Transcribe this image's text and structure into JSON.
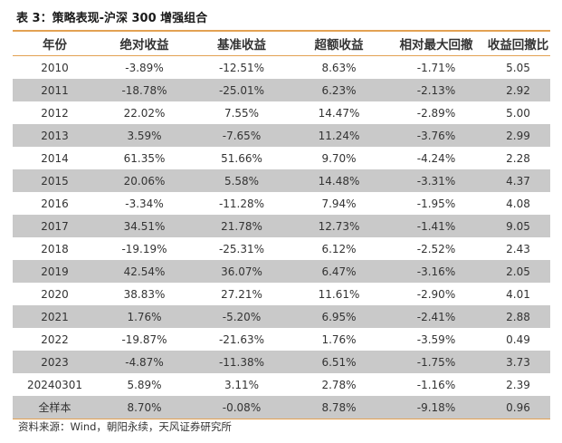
{
  "title": "表 3：策略表现-沪深 300 增强组合",
  "columns": [
    "年份",
    "绝对收益",
    "基准收益",
    "超额收益",
    "相对最大回撤",
    "收益回撤比"
  ],
  "rows": [
    [
      "2010",
      "-3.89%",
      "-12.51%",
      "8.63%",
      "-1.71%",
      "5.05"
    ],
    [
      "2011",
      "-18.78%",
      "-25.01%",
      "6.23%",
      "-2.13%",
      "2.92"
    ],
    [
      "2012",
      "22.02%",
      "7.55%",
      "14.47%",
      "-2.89%",
      "5.00"
    ],
    [
      "2013",
      "3.59%",
      "-7.65%",
      "11.24%",
      "-3.76%",
      "2.99"
    ],
    [
      "2014",
      "61.35%",
      "51.66%",
      "9.70%",
      "-4.24%",
      "2.28"
    ],
    [
      "2015",
      "20.06%",
      "5.58%",
      "14.48%",
      "-3.31%",
      "4.37"
    ],
    [
      "2016",
      "-3.34%",
      "-11.28%",
      "7.94%",
      "-1.95%",
      "4.08"
    ],
    [
      "2017",
      "34.51%",
      "21.78%",
      "12.73%",
      "-1.41%",
      "9.05"
    ],
    [
      "2018",
      "-19.19%",
      "-25.31%",
      "6.12%",
      "-2.52%",
      "2.43"
    ],
    [
      "2019",
      "42.54%",
      "36.07%",
      "6.47%",
      "-3.16%",
      "2.05"
    ],
    [
      "2020",
      "38.83%",
      "27.21%",
      "11.61%",
      "-2.90%",
      "4.01"
    ],
    [
      "2021",
      "1.76%",
      "-5.20%",
      "6.95%",
      "-2.41%",
      "2.88"
    ],
    [
      "2022",
      "-19.87%",
      "-21.63%",
      "1.76%",
      "-3.59%",
      "0.49"
    ],
    [
      "2023",
      "-4.87%",
      "-11.38%",
      "6.51%",
      "-1.75%",
      "3.73"
    ],
    [
      "20240301",
      "5.89%",
      "3.11%",
      "2.78%",
      "-1.16%",
      "2.39"
    ],
    [
      "全样本",
      "8.70%",
      "-0.08%",
      "8.78%",
      "-9.18%",
      "0.96"
    ]
  ],
  "source": "资料来源：Wind，朝阳永续，天风证券研究所",
  "colors": {
    "accent_rule": "#e3a153",
    "row_shade": "#c9c9c9"
  }
}
